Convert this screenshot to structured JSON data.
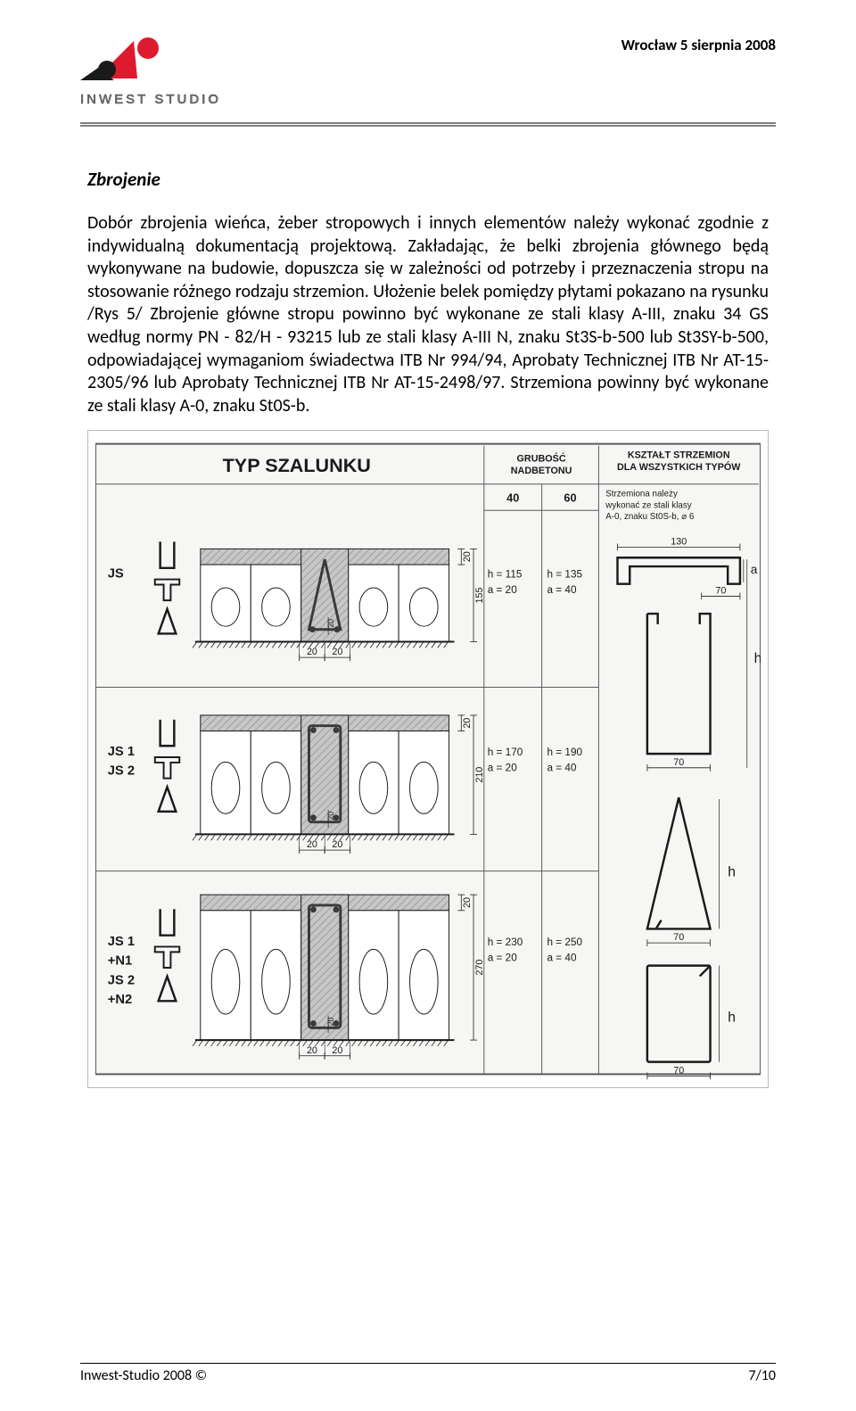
{
  "header": {
    "date": "Wrocław   5 sierpnia 2008",
    "brand_text": "INWEST  STUDIO",
    "logo_colors": {
      "red": "#dd1b2e",
      "black": "#1a1a1a"
    }
  },
  "content": {
    "section_title": "Zbrojenie",
    "paragraph": "Dobór zbrojenia wieńca, żeber stropowych i innych elementów należy wykonać zgodnie z indywidualną dokumentacją projektową. Zakładając, że belki zbrojenia głównego będą wykonywane na budowie, dopuszcza się w zależności od potrzeby i przeznaczenia stropu na stosowanie różnego rodzaju strzemion. Ułożenie belek pomiędzy płytami pokazano na rysunku /Rys 5/ Zbrojenie główne stropu powinno być wykonane ze stali klasy A-III, znaku 34 GS według normy PN - 82/H - 93215 lub ze stali klasy A-III N, znaku St3S-b-500 lub St3SY-b-500, odpowiadającej wymaganiom świadectwa ITB Nr 994/94, Aprobaty Technicznej ITB Nr AT-15-2305/96 lub Aprobaty Technicznej ITB Nr AT-15-2498/97. Strzemiona powinny być wykonane ze stali klasy A-0, znaku St0S-b."
  },
  "diagram": {
    "title": "TYP SZALUNKU",
    "col_headers": {
      "grubosc": "GRUBOŚĆ NADBETONU",
      "ksztalt": "KSZTAŁT STRZEMION DLA WSZYSTKICH TYPÓW"
    },
    "grubosc_values": [
      "40",
      "60"
    ],
    "ksztalt_note": "Strzemiona należy wykonać ze stali klasy A-0, znaku St0S-b, ⌀ 6",
    "rows": [
      {
        "labels": [
          "JS"
        ],
        "section_h": "155",
        "top_dim": "20",
        "inner_dim": "20",
        "bottom_dims": [
          "20",
          "20"
        ],
        "col40": [
          "h = 115",
          "a = 20"
        ],
        "col60": [
          "h = 135",
          "a = 40"
        ]
      },
      {
        "labels": [
          "JS 1",
          "JS 2"
        ],
        "section_h": "210",
        "top_dim": "20",
        "inner_dim": "20",
        "bottom_dims": [
          "20",
          "20"
        ],
        "col40": [
          "h = 170",
          "a = 20"
        ],
        "col60": [
          "h = 190",
          "a = 40"
        ]
      },
      {
        "labels": [
          "JS 1",
          "+N1",
          "JS 2",
          "+N2"
        ],
        "section_h": "270",
        "top_dim": "20",
        "inner_dim": "20",
        "bottom_dims": [
          "20",
          "20"
        ],
        "col40": [
          "h = 230",
          "a = 20"
        ],
        "col60": [
          "h = 250",
          "a = 40"
        ]
      }
    ],
    "stirrups": [
      {
        "type": "hook",
        "w": "130",
        "a_label": "a",
        "w2": "70"
      },
      {
        "type": "rect_tall",
        "h": "h",
        "w": "70"
      },
      {
        "type": "triangle",
        "h": "h",
        "w": "70"
      },
      {
        "type": "rect",
        "h": "h",
        "w": "70"
      }
    ],
    "colors": {
      "frame": "#5a5a5a",
      "bg": "#f6f6f4",
      "concrete": "#c7c7c7",
      "hatch": "#9d9d9d",
      "rebar": "#3a3a3a",
      "line": "#1a1a1a",
      "text": "#1a1a1a"
    },
    "font": {
      "title_size": 22,
      "header_size": 11,
      "label_size": 15,
      "dim_size": 11
    }
  },
  "footer": {
    "left": "Inwest-Studio 2008 ©",
    "right": "7/10"
  }
}
